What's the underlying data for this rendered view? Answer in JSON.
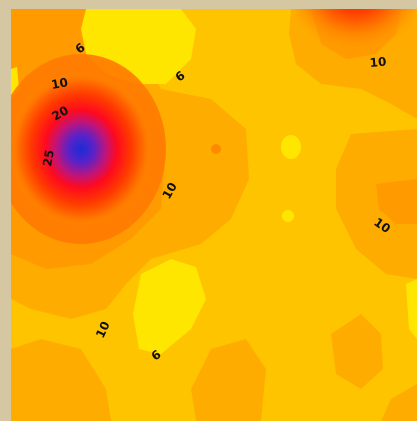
{
  "map": {
    "type": "contour",
    "colors": {
      "frame": "#d4c7a2",
      "low": "#ffe600",
      "mid": "#ffc400",
      "orange": "#ff9a00",
      "high": "#ff2a00",
      "peak": "#1a2cd6"
    },
    "contour_labels": [
      {
        "id": "label-6-top",
        "text": "6"
      },
      {
        "id": "label-6-upper-right",
        "text": "6"
      },
      {
        "id": "label-10-left",
        "text": "10"
      },
      {
        "id": "label-20-left",
        "text": "20"
      },
      {
        "id": "label-25-left",
        "text": "25"
      },
      {
        "id": "label-10-center",
        "text": "10"
      },
      {
        "id": "label-10-top-right",
        "text": "10"
      },
      {
        "id": "label-10-right",
        "text": "10"
      },
      {
        "id": "label-10-bottom",
        "text": "10"
      },
      {
        "id": "label-6-bottom",
        "text": "6"
      }
    ]
  }
}
